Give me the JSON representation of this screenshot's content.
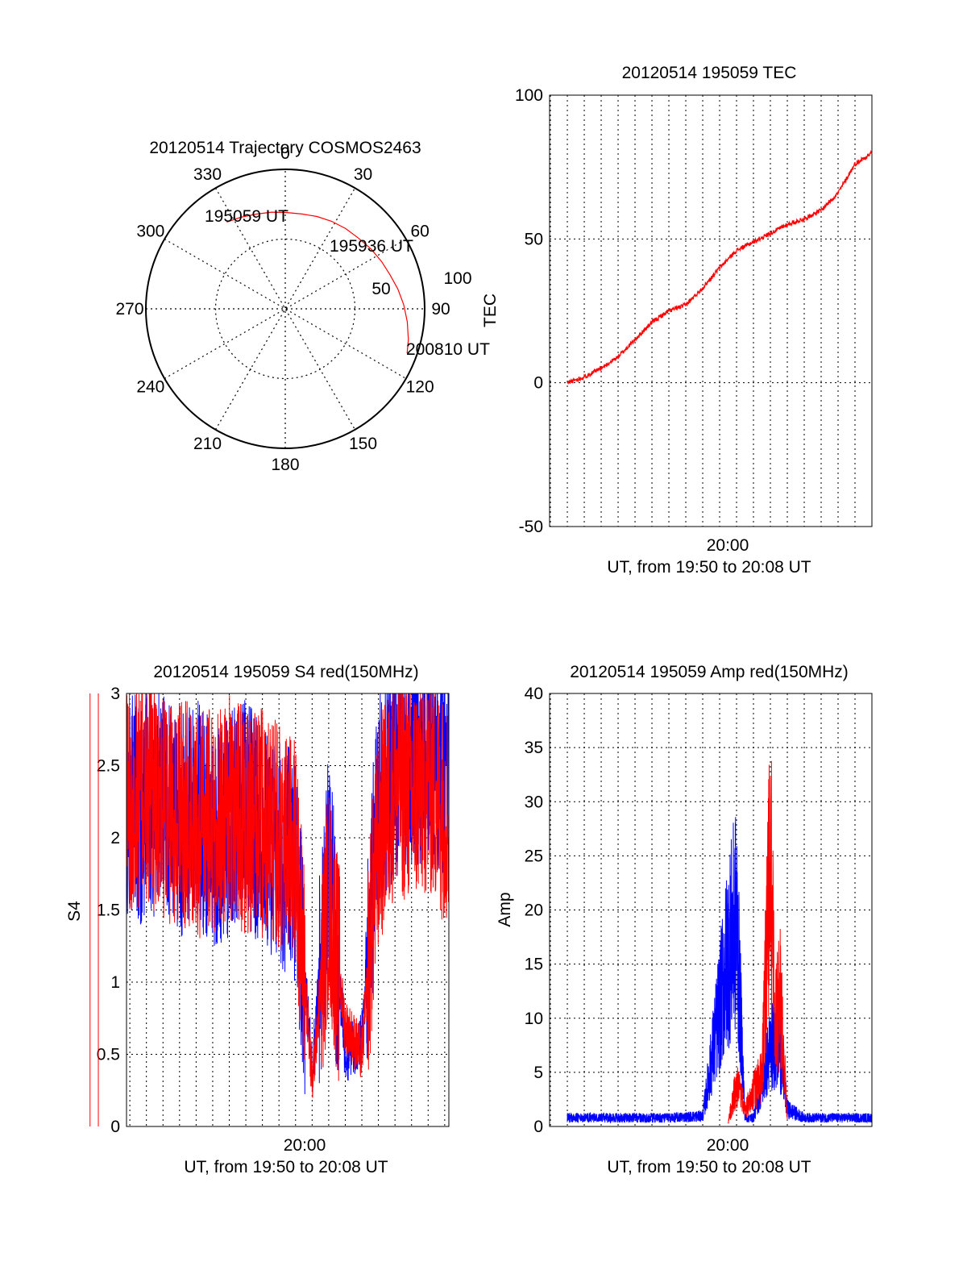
{
  "charts": {
    "trajectory": {
      "title": "20120514 Trajectory COSMOS2463",
      "azimuth_labels": [
        "0",
        "30",
        "60",
        "90",
        "120",
        "150",
        "180",
        "210",
        "240",
        "270",
        "300",
        "330"
      ],
      "ring_labels": [
        "50",
        "100"
      ],
      "markers": {
        "start": "195059 UT",
        "mid": "195936 UT",
        "end": "200810 UT"
      }
    },
    "tec": {
      "title": "20120514 195059 TEC",
      "ylabel": "TEC",
      "xtick": "20:00",
      "xlabel": "UT, from 19:50 to 20:08 UT",
      "yticks": [
        "100",
        "50",
        "0",
        "-50"
      ]
    },
    "s4": {
      "title": "20120514 195059 S4 red(150MHz)",
      "ylabel": "S4",
      "xtick": "20:00",
      "xlabel": "UT, from 19:50 to 20:08 UT",
      "yticks": [
        "3",
        "2.5",
        "2",
        "1.5",
        "1",
        "0.5",
        "0"
      ]
    },
    "amp": {
      "title": "20120514 195059 Amp red(150MHz)",
      "ylabel": "Amp",
      "xtick": "20:00",
      "xlabel": "UT, from 19:50 to 20:08 UT",
      "yticks": [
        "40",
        "35",
        "30",
        "25",
        "20",
        "15",
        "10",
        "5",
        "0"
      ]
    }
  },
  "colors": {
    "red": "#ff0000",
    "blue": "#0000ff",
    "axis": "#000000"
  },
  "chart_data": [
    {
      "type": "polar",
      "title": "20120514 Trajectory COSMOS2463",
      "radial_range": [
        0,
        100
      ],
      "rings": [
        50,
        100
      ],
      "azimuth_ticks_deg": [
        0,
        30,
        60,
        90,
        120,
        150,
        180,
        210,
        240,
        270,
        300,
        330
      ],
      "series": [
        {
          "color": "red",
          "azimuth_deg": [
            326,
            334,
            343,
            352,
            1,
            10,
            19,
            28,
            37,
            46,
            55,
            64,
            72,
            80,
            88,
            96,
            104,
            110
          ],
          "radius": [
            75,
            73,
            71,
            70,
            69,
            69,
            70,
            71,
            72,
            73,
            75,
            77,
            79,
            82,
            85,
            88,
            91,
            93
          ]
        }
      ],
      "annotations": [
        {
          "text": "195059 UT",
          "azimuth_deg": 326,
          "radius": 75
        },
        {
          "text": "195936 UT",
          "azimuth_deg": 55,
          "radius": 75
        },
        {
          "text": "200810 UT",
          "azimuth_deg": 110,
          "radius": 93
        }
      ]
    },
    {
      "type": "line",
      "title": "20120514 195059 TEC",
      "ylabel": "TEC",
      "xlabel": "UT, from 19:50 to 20:08 UT",
      "xlim": [
        "19:50",
        "20:08"
      ],
      "ylim": [
        -50,
        100
      ],
      "series": [
        {
          "color": "red",
          "x": [
            "19:50",
            "19:51",
            "19:52",
            "19:53",
            "19:54",
            "19:55",
            "19:56",
            "19:57",
            "19:58",
            "19:59",
            "20:00",
            "20:01",
            "20:02",
            "20:03",
            "20:04",
            "20:05",
            "20:06",
            "20:07",
            "20:08"
          ],
          "values": [
            0,
            2,
            5,
            9,
            15,
            21,
            25,
            27,
            33,
            40,
            46,
            49,
            52,
            55,
            57,
            60,
            66,
            76,
            80
          ]
        }
      ]
    },
    {
      "type": "line",
      "title": "20120514 195059 S4 red(150MHz)",
      "ylabel": "S4",
      "xlabel": "UT, from 19:50 to 20:08 UT",
      "xlim": [
        "19:50",
        "20:08"
      ],
      "ylim": [
        0,
        3
      ],
      "series": [
        {
          "color": "blue",
          "x": [
            "19:50",
            "19:51",
            "19:52",
            "19:53",
            "19:54",
            "19:55",
            "19:56",
            "19:57",
            "19:58",
            "19:59",
            "20:00",
            "20:01",
            "20:02",
            "20:03",
            "20:04",
            "20:05",
            "20:06",
            "20:07",
            "20:08"
          ],
          "values": [
            2.2,
            2.3,
            2.1,
            2.2,
            2.0,
            2.1,
            2.2,
            2.0,
            1.9,
            1.8,
            0.4,
            1.8,
            0.5,
            0.6,
            2.3,
            2.5,
            2.6,
            2.6,
            2.5
          ]
        },
        {
          "color": "red",
          "x": [
            "19:50",
            "19:51",
            "19:52",
            "19:53",
            "19:54",
            "19:55",
            "19:56",
            "19:57",
            "19:58",
            "19:59",
            "20:00",
            "20:01",
            "20:02",
            "20:03",
            "20:04",
            "20:05",
            "20:06",
            "20:07",
            "20:08"
          ],
          "values": [
            2.3,
            2.2,
            2.2,
            2.1,
            2.1,
            2.2,
            2.1,
            2.1,
            2.0,
            1.9,
            0.3,
            1.6,
            0.7,
            0.5,
            2.0,
            2.4,
            2.3,
            2.4,
            2.2
          ]
        }
      ]
    },
    {
      "type": "line",
      "title": "20120514 195059 Amp red(150MHz)",
      "ylabel": "Amp",
      "xlabel": "UT, from 19:50 to 20:08 UT",
      "xlim": [
        "19:50",
        "20:08"
      ],
      "ylim": [
        0,
        40
      ],
      "series": [
        {
          "color": "blue",
          "x": [
            "19:50",
            "19:52",
            "19:54",
            "19:56",
            "19:58",
            "19:59.5",
            "20:00",
            "20:00.5",
            "20:01",
            "20:02",
            "20:02.5",
            "20:03",
            "20:04",
            "20:06",
            "20:08"
          ],
          "values": [
            1,
            1,
            1,
            1,
            1.2,
            20,
            24,
            1,
            1,
            9,
            10,
            2,
            1,
            1,
            1
          ]
        },
        {
          "color": "red",
          "x": [
            "19:59.5",
            "20:00",
            "20:00.5",
            "20:01",
            "20:01.5",
            "20:02",
            "20:02.3",
            "20:02.6",
            "20:03"
          ],
          "values": [
            0.5,
            5,
            2,
            4,
            6,
            31,
            12,
            15,
            1
          ]
        }
      ]
    }
  ]
}
